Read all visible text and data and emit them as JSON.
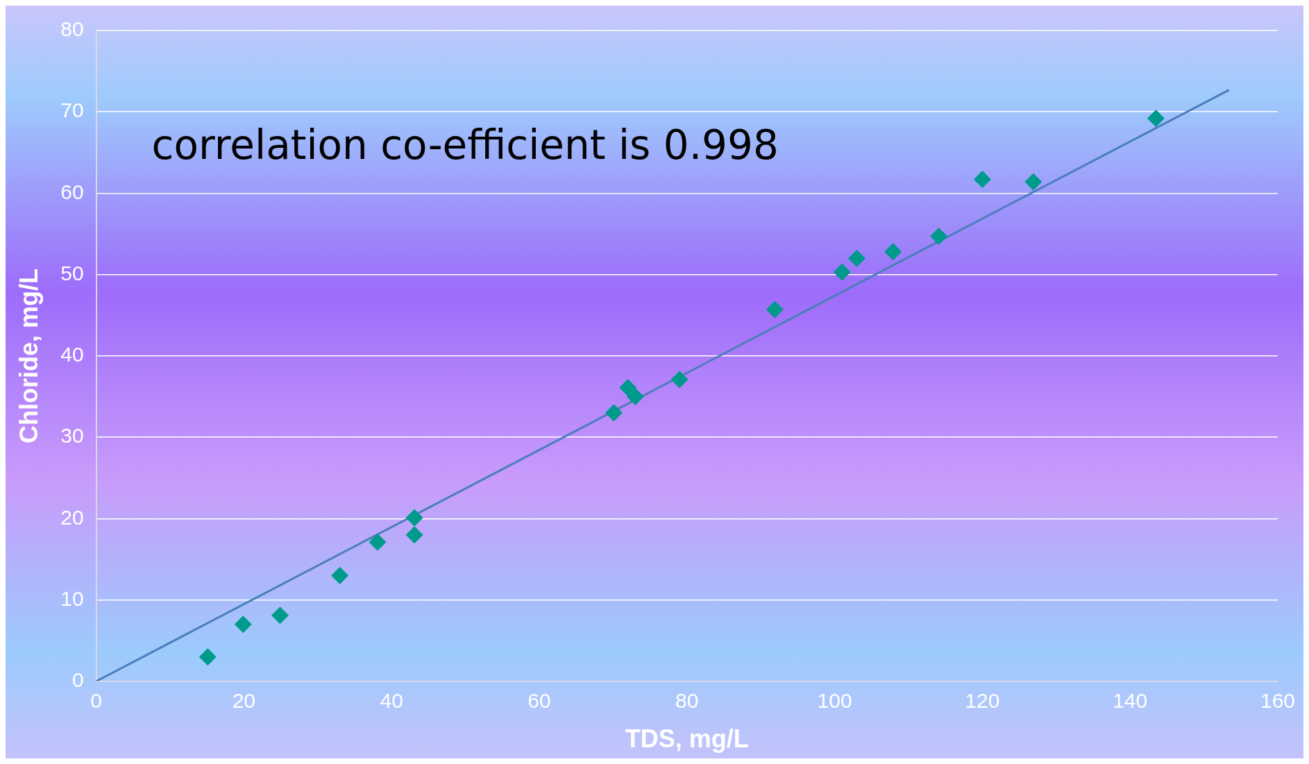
{
  "chart_data": {
    "type": "scatter",
    "xlabel": "TDS, mg/L",
    "ylabel": "Chloride, mg/L",
    "annotations": [
      "correlation co-efficient is 0.998"
    ],
    "xlim": [
      0,
      160
    ],
    "xticks": [
      0,
      20,
      40,
      60,
      80,
      100,
      120,
      140,
      160
    ],
    "ylim": [
      0,
      80
    ],
    "yticks": [
      0,
      10,
      20,
      30,
      40,
      50,
      60,
      70,
      80
    ],
    "grid": "y",
    "legend": false,
    "series": [
      {
        "marker": "diamond",
        "color": "#009a8c",
        "x": [
          15.1,
          19.9,
          24.9,
          33,
          38.1,
          43.1,
          43.1,
          70.1,
          72,
          73,
          79,
          91.9,
          101,
          103,
          107.9,
          114.1,
          120,
          126.9,
          143.5
        ],
        "values": [
          3,
          7,
          8.1,
          13,
          17.1,
          20.1,
          18,
          33,
          36.1,
          35,
          37.1,
          45.7,
          50.3,
          52,
          52.8,
          54.7,
          61.7,
          61.4,
          69.2
        ]
      },
      {
        "type": "line",
        "marker": "none",
        "color": "#4a7ebb",
        "x": [
          0,
          153.4
        ],
        "values": [
          0,
          72.7
        ]
      }
    ]
  }
}
